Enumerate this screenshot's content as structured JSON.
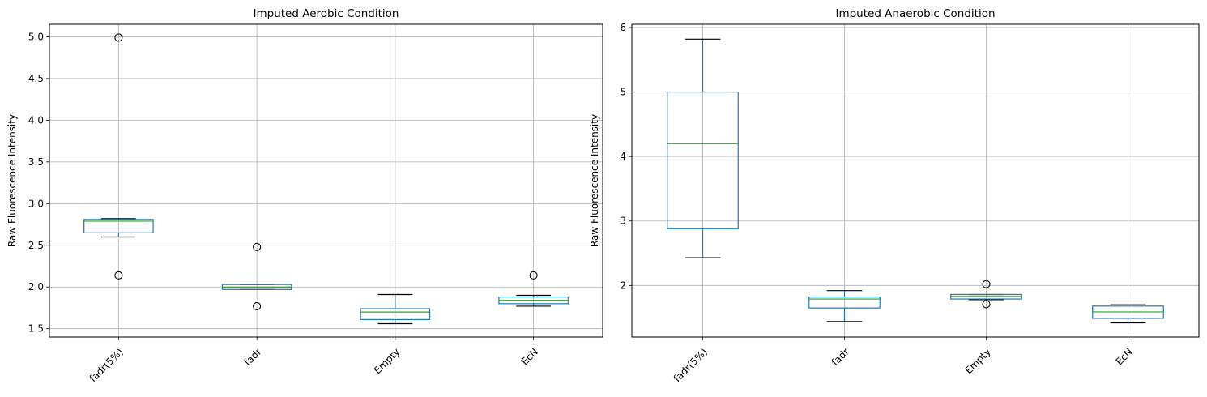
{
  "chart_data": [
    {
      "type": "boxplot",
      "title": "Imputed Aerobic Condition",
      "xlabel": "",
      "ylabel": "Raw Fluorescence Intensity",
      "ylim": [
        1.4,
        5.15
      ],
      "yticks": [
        1.5,
        2.0,
        2.5,
        3.0,
        3.5,
        4.0,
        4.5,
        5.0
      ],
      "ytick_labels": [
        "1.5",
        "2.0",
        "2.5",
        "3.0",
        "3.5",
        "4.0",
        "4.5",
        "5.0"
      ],
      "grid": true,
      "categories": [
        "fadr(5%)",
        "fadr",
        "Empty",
        "EcN"
      ],
      "boxes": [
        {
          "whislo": 2.6,
          "q1": 2.65,
          "med": 2.79,
          "q3": 2.81,
          "whishi": 2.82,
          "fliers": [
            4.99,
            2.14
          ]
        },
        {
          "whislo": 1.97,
          "q1": 1.97,
          "med": 2.0,
          "q3": 2.03,
          "whishi": 2.03,
          "fliers": [
            2.48,
            1.77
          ]
        },
        {
          "whislo": 1.56,
          "q1": 1.61,
          "med": 1.7,
          "q3": 1.74,
          "whishi": 1.91,
          "fliers": []
        },
        {
          "whislo": 1.77,
          "q1": 1.8,
          "med": 1.84,
          "q3": 1.88,
          "whishi": 1.9,
          "fliers": [
            2.14
          ]
        }
      ]
    },
    {
      "type": "boxplot",
      "title": "Imputed Anaerobic Condition",
      "xlabel": "",
      "ylabel": "Raw Fluorescence Intensity",
      "ylim": [
        1.2,
        6.05
      ],
      "yticks": [
        2,
        3,
        4,
        5,
        6
      ],
      "ytick_labels": [
        "2",
        "3",
        "4",
        "5",
        "6"
      ],
      "grid": true,
      "categories": [
        "fadr(5%)",
        "fadr",
        "Empty",
        "EcN"
      ],
      "boxes": [
        {
          "whislo": 2.43,
          "q1": 2.88,
          "med": 4.2,
          "q3": 5.0,
          "whishi": 5.82,
          "fliers": []
        },
        {
          "whislo": 1.44,
          "q1": 1.65,
          "med": 1.79,
          "q3": 1.82,
          "whishi": 1.92,
          "fliers": []
        },
        {
          "whislo": 1.78,
          "q1": 1.79,
          "med": 1.83,
          "q3": 1.86,
          "whishi": 1.86,
          "fliers": [
            2.02,
            1.71
          ]
        },
        {
          "whislo": 1.42,
          "q1": 1.49,
          "med": 1.59,
          "q3": 1.68,
          "whishi": 1.7,
          "fliers": []
        }
      ]
    }
  ],
  "colors": {
    "box": "#1f77b4",
    "median": "#2ca02c",
    "cap": "#000000",
    "grid": "#b0b0b0",
    "flier_edge": "#000000"
  }
}
